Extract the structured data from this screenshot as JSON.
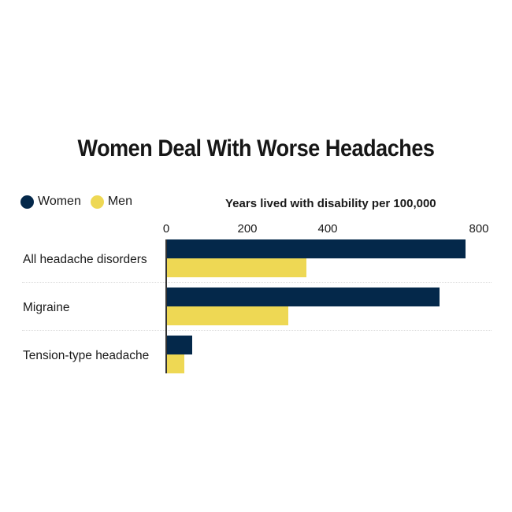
{
  "title": "Women Deal With Worse Headaches",
  "legend": [
    {
      "label": "Women",
      "color": "#04284a"
    },
    {
      "label": "Men",
      "color": "#eed854"
    }
  ],
  "axis_title": "Years lived with disability per 100,000",
  "ticks": [
    "0",
    "200",
    "400",
    "800"
  ],
  "categories": [
    "All headache disorders",
    "Migraine",
    "Tension-type headache"
  ],
  "chart_data": {
    "type": "bar",
    "orientation": "horizontal",
    "title": "Women Deal With Worse Headaches",
    "xlabel": "Years lived with disability per 100,000",
    "ylabel": "",
    "categories": [
      "All headache disorders",
      "Migraine",
      "Tension-type headache"
    ],
    "series": [
      {
        "name": "Women",
        "color": "#04284a",
        "values": [
          739,
          675,
          64
        ]
      },
      {
        "name": "Men",
        "color": "#eed854",
        "values": [
          346,
          302,
          45
        ]
      }
    ],
    "tick_labels": [
      "0",
      "200",
      "400",
      "800"
    ],
    "xlim": [
      0,
      800
    ],
    "grid": false,
    "legend_position": "top-left"
  }
}
